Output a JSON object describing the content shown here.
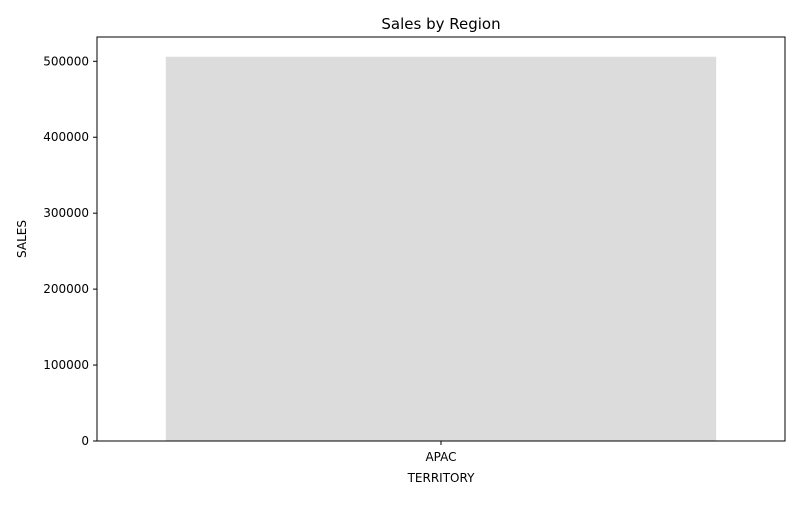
{
  "chart_data": {
    "type": "bar",
    "title": "Sales by Region",
    "xlabel": "TERRITORY",
    "ylabel": "SALES",
    "categories": [
      "APAC"
    ],
    "values": [
      506000
    ],
    "ylim": [
      0,
      532000
    ],
    "yticks": [
      0,
      100000,
      200000,
      300000,
      400000,
      500000
    ],
    "ytick_labels": [
      "0",
      "100000",
      "200000",
      "300000",
      "400000",
      "500000"
    ],
    "grid": false,
    "legend": "none",
    "bar_color": "#dcdcdc"
  }
}
